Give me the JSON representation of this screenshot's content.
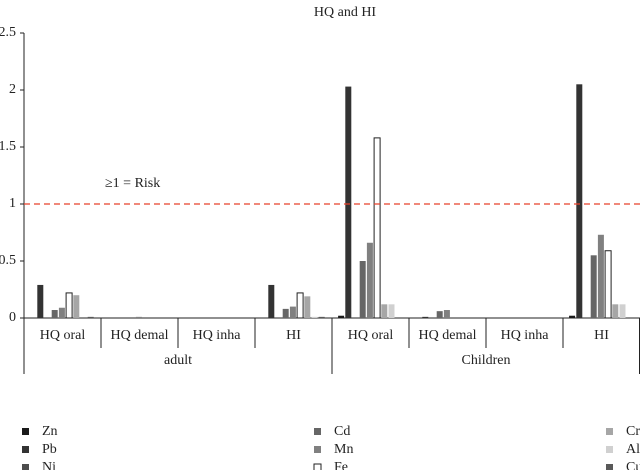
{
  "chart_data": {
    "type": "bar",
    "title": "HQ and HI",
    "groups": [
      {
        "label": "adult",
        "categories": [
          "HQ oral",
          "HQ demal",
          "HQ inha",
          "HI"
        ]
      },
      {
        "label": "Children",
        "categories": [
          "HQ oral",
          "HQ demal",
          "HQ inha",
          "HI"
        ]
      }
    ],
    "series": [
      {
        "name": "Zn",
        "color": "#1a1a1a",
        "values": [
          0.0,
          0.0,
          0.0,
          0.0,
          0.02,
          0.0,
          0.0,
          0.02
        ]
      },
      {
        "name": "Pb",
        "color": "#333333",
        "values": [
          0.29,
          0.0,
          0.0,
          0.29,
          2.03,
          0.01,
          0.0,
          2.05
        ]
      },
      {
        "name": "Ni",
        "color": "#4d4d4d",
        "values": [
          0.0,
          0.0,
          0.0,
          0.0,
          0.0,
          0.0,
          0.0,
          0.0
        ]
      },
      {
        "name": "Cd",
        "color": "#666666",
        "values": [
          0.07,
          0.0,
          0.0,
          0.08,
          0.5,
          0.06,
          0.0,
          0.55
        ]
      },
      {
        "name": "Mn",
        "color": "#808080",
        "values": [
          0.09,
          0.01,
          0.0,
          0.1,
          0.66,
          0.07,
          0.0,
          0.73
        ]
      },
      {
        "name": "Fe",
        "color": "#ffffff",
        "values": [
          0.22,
          0.0,
          0.0,
          0.22,
          1.58,
          0.0,
          0.0,
          0.59
        ]
      },
      {
        "name": "Cr",
        "color": "#a6a6a6",
        "values": [
          0.2,
          0.0,
          0.0,
          0.19,
          0.12,
          0.0,
          0.0,
          0.12
        ]
      },
      {
        "name": "Al",
        "color": "#d0d0d0",
        "values": [
          0.0,
          0.0,
          0.0,
          0.01,
          0.12,
          0.0,
          0.0,
          0.12
        ]
      },
      {
        "name": "Cu",
        "color": "#595959",
        "values": [
          0.01,
          0.0,
          0.0,
          0.01,
          0.0,
          0.0,
          0.0,
          0.0
        ]
      }
    ],
    "threshold": {
      "value": 1,
      "label": "≥1 = Risk",
      "color": "#e8402a"
    },
    "ylim": [
      0,
      2.5
    ],
    "yticks": [
      0,
      0.5,
      1,
      1.5,
      2,
      2.5
    ]
  }
}
